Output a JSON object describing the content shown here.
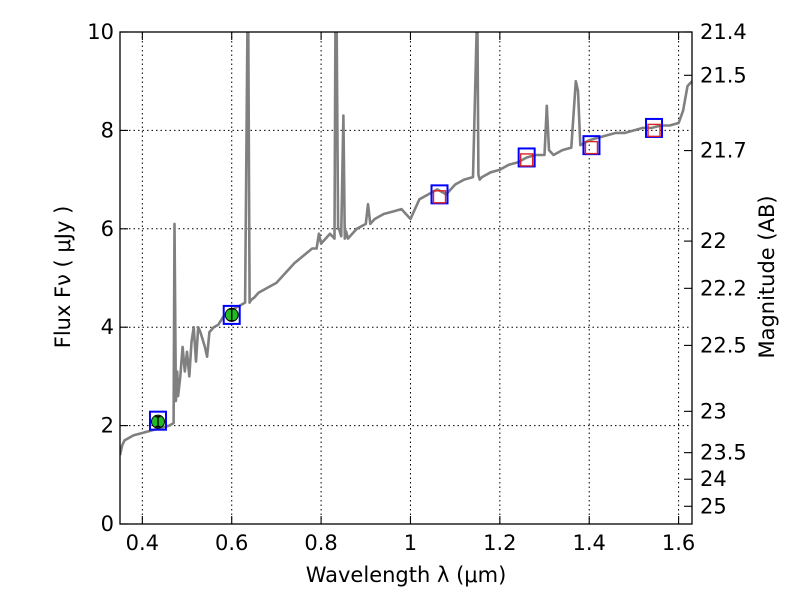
{
  "chart_data": {
    "type": "scatter",
    "xlabel": "Wavelength  λ (μm)",
    "ylabel": "Flux  Fν  ( μJy )",
    "y2label": "Magnitude (AB)",
    "xlim": [
      0.35,
      1.63
    ],
    "ylim": [
      0,
      10
    ],
    "x_ticks": [
      0.4,
      0.6,
      0.8,
      1,
      1.2,
      1.4,
      1.6
    ],
    "x_tick_labels": [
      "0.4",
      "0.6",
      "0.8",
      "1",
      "1.2",
      "1.4",
      "1.6"
    ],
    "y_ticks": [
      0,
      2,
      4,
      6,
      8,
      10
    ],
    "y_tick_labels": [
      "0",
      "2",
      "4",
      "6",
      "8",
      "10"
    ],
    "mag_ticks": [
      {
        "label": "21.4",
        "flux": 10.0
      },
      {
        "label": "21.5",
        "flux": 9.12
      },
      {
        "label": "21.7",
        "flux": 7.59
      },
      {
        "label": "22",
        "flux": 5.75
      },
      {
        "label": "22.2",
        "flux": 4.79
      },
      {
        "label": "22.5",
        "flux": 3.63
      },
      {
        "label": "23",
        "flux": 2.29
      },
      {
        "label": "23.5",
        "flux": 1.45
      },
      {
        "label": "24",
        "flux": 0.91
      },
      {
        "label": "25",
        "flux": 0.36
      }
    ],
    "grid": true,
    "colors": {
      "spectrum": "#808080",
      "model_marker": "#0000ff",
      "observed_marker": "#22bb22",
      "upper_marker": "#dd2222"
    },
    "series": [
      {
        "kind": "line",
        "x": [
          0.35,
          0.355,
          0.36,
          0.38,
          0.4,
          0.42,
          0.44,
          0.46,
          0.47,
          0.472,
          0.475,
          0.478,
          0.48,
          0.485,
          0.49,
          0.495,
          0.5,
          0.505,
          0.51,
          0.515,
          0.52,
          0.525,
          0.53,
          0.54,
          0.545,
          0.55,
          0.56,
          0.57,
          0.58,
          0.59,
          0.6,
          0.61,
          0.62,
          0.63,
          0.635,
          0.637,
          0.64,
          0.643,
          0.65,
          0.66,
          0.68,
          0.7,
          0.72,
          0.74,
          0.76,
          0.78,
          0.79,
          0.795,
          0.8,
          0.82,
          0.83,
          0.832,
          0.835,
          0.838,
          0.84,
          0.845,
          0.85,
          0.853,
          0.856,
          0.86,
          0.88,
          0.9,
          0.905,
          0.91,
          0.92,
          0.94,
          0.96,
          0.98,
          1.0,
          1.02,
          1.04,
          1.06,
          1.08,
          1.1,
          1.12,
          1.14,
          1.148,
          1.15,
          1.152,
          1.155,
          1.16,
          1.18,
          1.2,
          1.22,
          1.24,
          1.26,
          1.28,
          1.3,
          1.305,
          1.31,
          1.315,
          1.32,
          1.34,
          1.36,
          1.37,
          1.375,
          1.38,
          1.39,
          1.4,
          1.42,
          1.44,
          1.46,
          1.48,
          1.5,
          1.52,
          1.54,
          1.56,
          1.58,
          1.6,
          1.61,
          1.62,
          1.63
        ],
        "y": [
          1.4,
          1.6,
          1.7,
          1.8,
          1.85,
          1.9,
          1.95,
          2.0,
          2.05,
          6.1,
          2.5,
          3.1,
          2.6,
          3.0,
          3.6,
          3.1,
          3.5,
          3.0,
          3.7,
          4.0,
          3.3,
          4.0,
          3.9,
          3.6,
          3.4,
          3.9,
          4.0,
          4.05,
          4.2,
          4.3,
          4.35,
          4.4,
          4.45,
          4.5,
          10.0,
          10.0,
          4.5,
          4.55,
          4.6,
          4.7,
          4.8,
          4.9,
          5.1,
          5.3,
          5.45,
          5.6,
          5.6,
          5.9,
          5.7,
          5.9,
          5.8,
          10.0,
          10.0,
          6.0,
          6.0,
          5.85,
          8.3,
          5.8,
          5.95,
          5.8,
          6.0,
          6.1,
          6.5,
          6.1,
          6.2,
          6.3,
          6.35,
          6.4,
          6.2,
          6.6,
          6.7,
          6.8,
          6.7,
          6.9,
          7.0,
          7.05,
          10.0,
          10.0,
          7.1,
          7.0,
          7.05,
          7.15,
          7.2,
          7.3,
          7.35,
          7.45,
          7.5,
          7.5,
          8.5,
          7.6,
          7.55,
          7.5,
          7.6,
          7.65,
          9.0,
          8.8,
          7.7,
          7.75,
          7.8,
          7.85,
          7.9,
          7.95,
          7.95,
          8.0,
          8.05,
          8.05,
          8.1,
          8.1,
          8.15,
          8.4,
          8.9,
          9.0
        ]
      },
      {
        "kind": "model-photometry",
        "marker": "square",
        "x": [
          0.435,
          0.6,
          1.065,
          1.26,
          1.405,
          1.545
        ],
        "y": [
          2.1,
          4.25,
          6.7,
          7.45,
          7.7,
          8.05
        ]
      },
      {
        "kind": "observed-photometry",
        "marker": "circle",
        "x": [
          0.435,
          0.6
        ],
        "y": [
          2.08,
          4.25
        ],
        "yerr": [
          0.1,
          0.12
        ]
      },
      {
        "kind": "upper-limit",
        "marker": "open-square",
        "x": [
          1.065,
          1.26,
          1.405,
          1.545
        ],
        "y": [
          6.65,
          7.4,
          7.65,
          8.0
        ]
      }
    ]
  }
}
